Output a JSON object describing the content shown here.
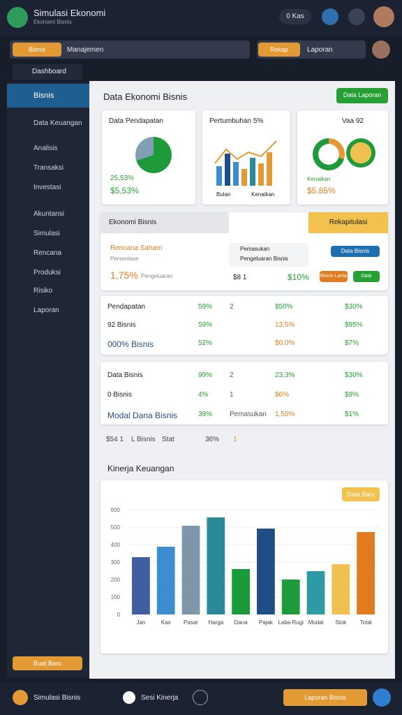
{
  "header": {
    "title": "Simulasi Ekonomi",
    "subtitle": "Ekonomi Bisnis",
    "badge": "0 Kas"
  },
  "toolbar": {
    "search_button": "Bisnis",
    "search_text": "Manajemen",
    "action_button": "Rekap",
    "action_text": "Laporan"
  },
  "dropdown": "Dashboard",
  "sidebar": {
    "items": [
      "Bisnis",
      "Data Keuangan",
      "Analisis",
      "Transaksi",
      "Investasi",
      "Akuntansi",
      "Simulasi",
      "Rencana",
      "Produksi",
      "Risiko",
      "Laporan"
    ],
    "footer": "Buat Baru"
  },
  "main": {
    "title": "Data Ekonomi Bisnis",
    "button": "Data Laporan"
  },
  "cards": [
    {
      "title": "Data Pendapatan",
      "value1": "25,53%",
      "value2": "$5,53%"
    },
    {
      "title": "Pertumbuhan 5%",
      "legend1": "Bulan",
      "legend2": "Kenaikan"
    },
    {
      "title": "Vaa 92",
      "value1": "Kenaikan",
      "value2": "$5,85%"
    }
  ],
  "panel": {
    "title": "Ekonomi Bisnis",
    "button": "Rekapitulasi",
    "label": "Rencana Saham",
    "sublabel": "Persentase",
    "value": "1,75%",
    "value_note": "Pengeluaran",
    "legend1": "Pemasukan",
    "legend2": "Pengeluaran Bisnis",
    "mid": "$8 1",
    "amount": "$10%",
    "pill1": "Data Bisnis",
    "pill2": "Bisnis Lama",
    "pill3": "Data"
  },
  "table1": {
    "rows": [
      [
        "Pendapatan",
        "59%",
        "2",
        "$50%",
        "$30%"
      ],
      [
        "92 Bisnis",
        "59%",
        "",
        "13,5%",
        "$95%"
      ],
      [
        "000% Bisnis",
        "52%",
        "",
        "$0,0%",
        "$7%"
      ]
    ]
  },
  "table2": {
    "rows": [
      [
        "Data Bisnis",
        "99%",
        "2",
        "23,3%",
        "$30%"
      ],
      [
        "0 Bisnis",
        "4%",
        "1",
        "$6%",
        "$9%"
      ],
      [
        "Modal Dana Bisnis",
        "39%",
        "Pemasukan",
        "1,50%",
        "$1%"
      ]
    ]
  },
  "summary": [
    "$54 1",
    "L Bisnis",
    "Stat",
    "36%",
    "1"
  ],
  "chart_data": {
    "type": "bar",
    "title": "Kinerja Keuangan",
    "button": "Data Baru",
    "categories": [
      "Jan",
      "Kas",
      "Pasar",
      "Harga",
      "Dana",
      "Pajak",
      "Laba Rugi",
      "Modal",
      "Stok",
      "Total"
    ],
    "values": [
      328,
      388,
      508,
      556,
      260,
      492,
      200,
      248,
      288,
      472
    ],
    "colors": [
      "#3f5fa0",
      "#3b8fd0",
      "#7f95a8",
      "#2a8a98",
      "#1a9a3a",
      "#1f4e86",
      "#1e9a3a",
      "#2e9aa5",
      "#f0c050",
      "#e07b20"
    ],
    "ylim": [
      0,
      600
    ],
    "yticks": [
      0,
      100,
      200,
      300,
      400,
      500,
      600
    ],
    "grid": true
  },
  "footer": {
    "left": "Simulasi Bisnis",
    "center": "Sesi Kinerja",
    "right": "Laporan Bisnis"
  }
}
